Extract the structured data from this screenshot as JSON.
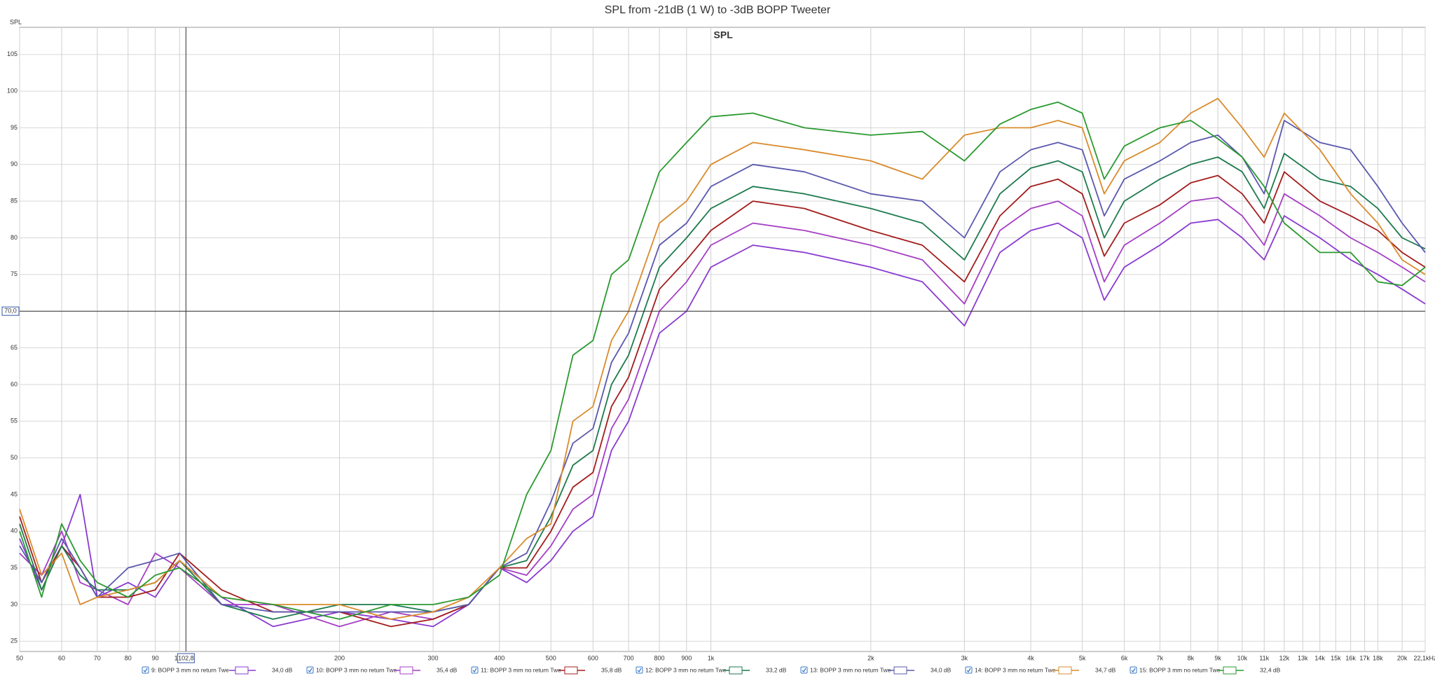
{
  "chart_data": {
    "type": "line",
    "title": "SPL from -21dB (1 W) to -3dB BOPP Tweeter",
    "annotation": "SPL",
    "y_label": "SPL",
    "log_x": true,
    "grid": true,
    "xlim": [
      50,
      22100
    ],
    "ylim": [
      23.6,
      108.7
    ],
    "xticks": [
      50,
      60,
      70,
      80,
      90,
      100,
      200,
      300,
      400,
      500,
      600,
      700,
      800,
      900,
      {
        "value": 1000,
        "label": "1k"
      },
      {
        "value": 2000,
        "label": "2k"
      },
      {
        "value": 3000,
        "label": "3k"
      },
      {
        "value": 4000,
        "label": "4k"
      },
      {
        "value": 5000,
        "label": "5k"
      },
      {
        "value": 6000,
        "label": "6k"
      },
      {
        "value": 7000,
        "label": "7k"
      },
      {
        "value": 8000,
        "label": "8k"
      },
      {
        "value": 9000,
        "label": "9k"
      },
      {
        "value": 10000,
        "label": "10k"
      },
      {
        "value": 11000,
        "label": "11k"
      },
      {
        "value": 12000,
        "label": "12k"
      },
      {
        "value": 13000,
        "label": "13k"
      },
      {
        "value": 14000,
        "label": "14k"
      },
      {
        "value": 15000,
        "label": "15k"
      },
      {
        "value": 16000,
        "label": "16k"
      },
      {
        "value": 17000,
        "label": "17k"
      },
      {
        "value": 18000,
        "label": "18k"
      },
      {
        "value": 20000,
        "label": "20k"
      },
      {
        "value": 22100,
        "label": "22,1kHz"
      }
    ],
    "yticks": [
      25,
      30,
      35,
      40,
      45,
      50,
      55,
      60,
      65,
      70,
      75,
      80,
      85,
      90,
      95,
      100,
      105
    ],
    "cursor": {
      "x": 102.8,
      "x_label": "102,8",
      "y": 70.0,
      "y_label": "70,0"
    },
    "x": [
      50,
      55,
      60,
      65,
      70,
      80,
      90,
      100,
      120,
      150,
      200,
      250,
      300,
      350,
      400,
      450,
      500,
      550,
      600,
      650,
      700,
      800,
      900,
      1000,
      1200,
      1500,
      2000,
      2500,
      3000,
      3500,
      4000,
      4500,
      5000,
      5500,
      6000,
      7000,
      8000,
      9000,
      10000,
      11000,
      12000,
      14000,
      16000,
      18000,
      20000,
      22100
    ],
    "series": [
      {
        "name": "9: BOPP 3 mm no return Twe",
        "color": "#8a3ad0",
        "cursor_label": "34,0 dB",
        "values": [
          39,
          32,
          38,
          45,
          31,
          33,
          31,
          36,
          31,
          27,
          29,
          28,
          27,
          30,
          35,
          33,
          36,
          40,
          42,
          51,
          55,
          67,
          70,
          76,
          79,
          78,
          76,
          74,
          68,
          78,
          81,
          82,
          80,
          71.5,
          76,
          79,
          82,
          82.5,
          80,
          77,
          83,
          80,
          77,
          75,
          73,
          71
        ]
      },
      {
        "name": "10: BOPP 3 mm no return Twe",
        "color": "#a53fc4",
        "cursor_label": "35,4 dB",
        "values": [
          37,
          34,
          40,
          33,
          32,
          30,
          37,
          35,
          30,
          30,
          27,
          29,
          28,
          30,
          35,
          34,
          38,
          43,
          45,
          54,
          58,
          70,
          74,
          79,
          82,
          81,
          79,
          77,
          71,
          81,
          84,
          85,
          83,
          74,
          79,
          82,
          85,
          85.5,
          83,
          79,
          86,
          83,
          80,
          78,
          76,
          74
        ]
      },
      {
        "name": "11: BOPP 3 mm no return Twe",
        "color": "#a31c1c",
        "cursor_label": "35,8 dB",
        "values": [
          42,
          33,
          38,
          35,
          31,
          31,
          32,
          37,
          32,
          29,
          29,
          27,
          28,
          30,
          35,
          35,
          40,
          46,
          48,
          57,
          61,
          73,
          77,
          81,
          85,
          84,
          81,
          79,
          74,
          83,
          87,
          88,
          86,
          77.5,
          82,
          84.5,
          87.5,
          88.5,
          86,
          82,
          89,
          85,
          83,
          81,
          78,
          76
        ]
      },
      {
        "name": "12: BOPP 3 mm no return Twe",
        "color": "#1d7a4e",
        "cursor_label": "33,2 dB",
        "values": [
          41,
          32,
          38,
          34,
          32,
          32,
          33,
          36,
          30,
          28,
          30,
          30,
          29,
          30,
          35,
          36,
          42,
          49,
          51,
          60,
          64,
          76,
          80,
          84,
          87,
          86,
          84,
          82,
          77,
          86,
          89.5,
          90.5,
          89,
          80,
          85,
          88,
          90,
          91,
          89,
          84,
          91.5,
          88,
          87,
          84,
          80,
          78.5
        ]
      },
      {
        "name": "13: BOPP 3 mm no return Twe",
        "color": "#5a58ad",
        "cursor_label": "34,0 dB",
        "values": [
          38,
          33,
          39,
          35,
          31,
          35,
          36,
          37,
          30,
          29,
          29,
          29,
          29,
          30,
          35,
          37,
          44,
          52,
          54,
          63,
          67,
          79,
          82,
          87,
          90,
          89,
          86,
          85,
          80,
          89,
          92,
          93,
          92,
          83,
          88,
          90.5,
          93,
          94,
          91,
          86,
          96,
          93,
          92,
          87,
          82,
          78
        ]
      },
      {
        "name": "14: BOPP 3 mm no return Twe",
        "color": "#d98b2c",
        "cursor_label": "34,7 dB",
        "values": [
          43,
          34,
          37,
          30,
          31,
          32,
          33,
          36,
          31,
          30,
          30,
          28,
          29,
          31,
          35,
          39,
          41,
          55,
          57,
          66,
          70,
          82,
          85,
          90,
          93,
          92,
          90.5,
          88,
          94,
          95,
          95,
          96,
          95,
          86,
          90.5,
          93,
          97,
          99,
          95,
          91,
          97,
          92,
          86,
          82,
          77,
          75
        ]
      },
      {
        "name": "15: BOPP 3 mm no return Twe",
        "color": "#2a9a2f",
        "cursor_label": "32,4 dB",
        "values": [
          40,
          31,
          41,
          36,
          33,
          31,
          34,
          35,
          31,
          30,
          28,
          30,
          30,
          31,
          34,
          45,
          51,
          64,
          66,
          75,
          77,
          89,
          93,
          96.5,
          97,
          95,
          94,
          94.5,
          90.5,
          95.5,
          97.5,
          98.5,
          97,
          88,
          92.5,
          95,
          96,
          93.5,
          91,
          87,
          82,
          78,
          78,
          74,
          73.5,
          76
        ]
      }
    ]
  }
}
